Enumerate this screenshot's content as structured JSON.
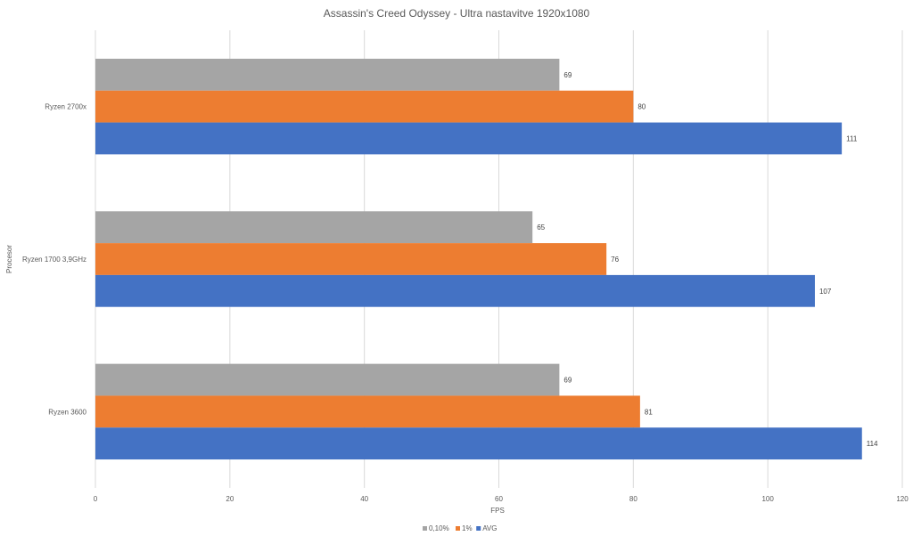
{
  "chart_data": {
    "type": "bar",
    "orientation": "horizontal",
    "title": "Assassin's Creed Odyssey - Ultra nastavitve 1920x1080",
    "xlabel": "FPS",
    "ylabel": "Procesor",
    "xlim": [
      0,
      120
    ],
    "xticks": [
      "0",
      "20",
      "40",
      "60",
      "80",
      "100",
      "120"
    ],
    "grid": true,
    "legend_position": "bottom",
    "categories": [
      "Ryzen 2700x",
      "Ryzen 1700 3,9GHz",
      "Ryzen 3600"
    ],
    "series": [
      {
        "name": "0,10%",
        "color": "#a5a5a5",
        "values": [
          69,
          65,
          69
        ]
      },
      {
        "name": "1%",
        "color": "#ed7d31",
        "values": [
          80,
          76,
          81
        ]
      },
      {
        "name": "AVG",
        "color": "#4472c4",
        "values": [
          111,
          107,
          114
        ]
      }
    ]
  }
}
